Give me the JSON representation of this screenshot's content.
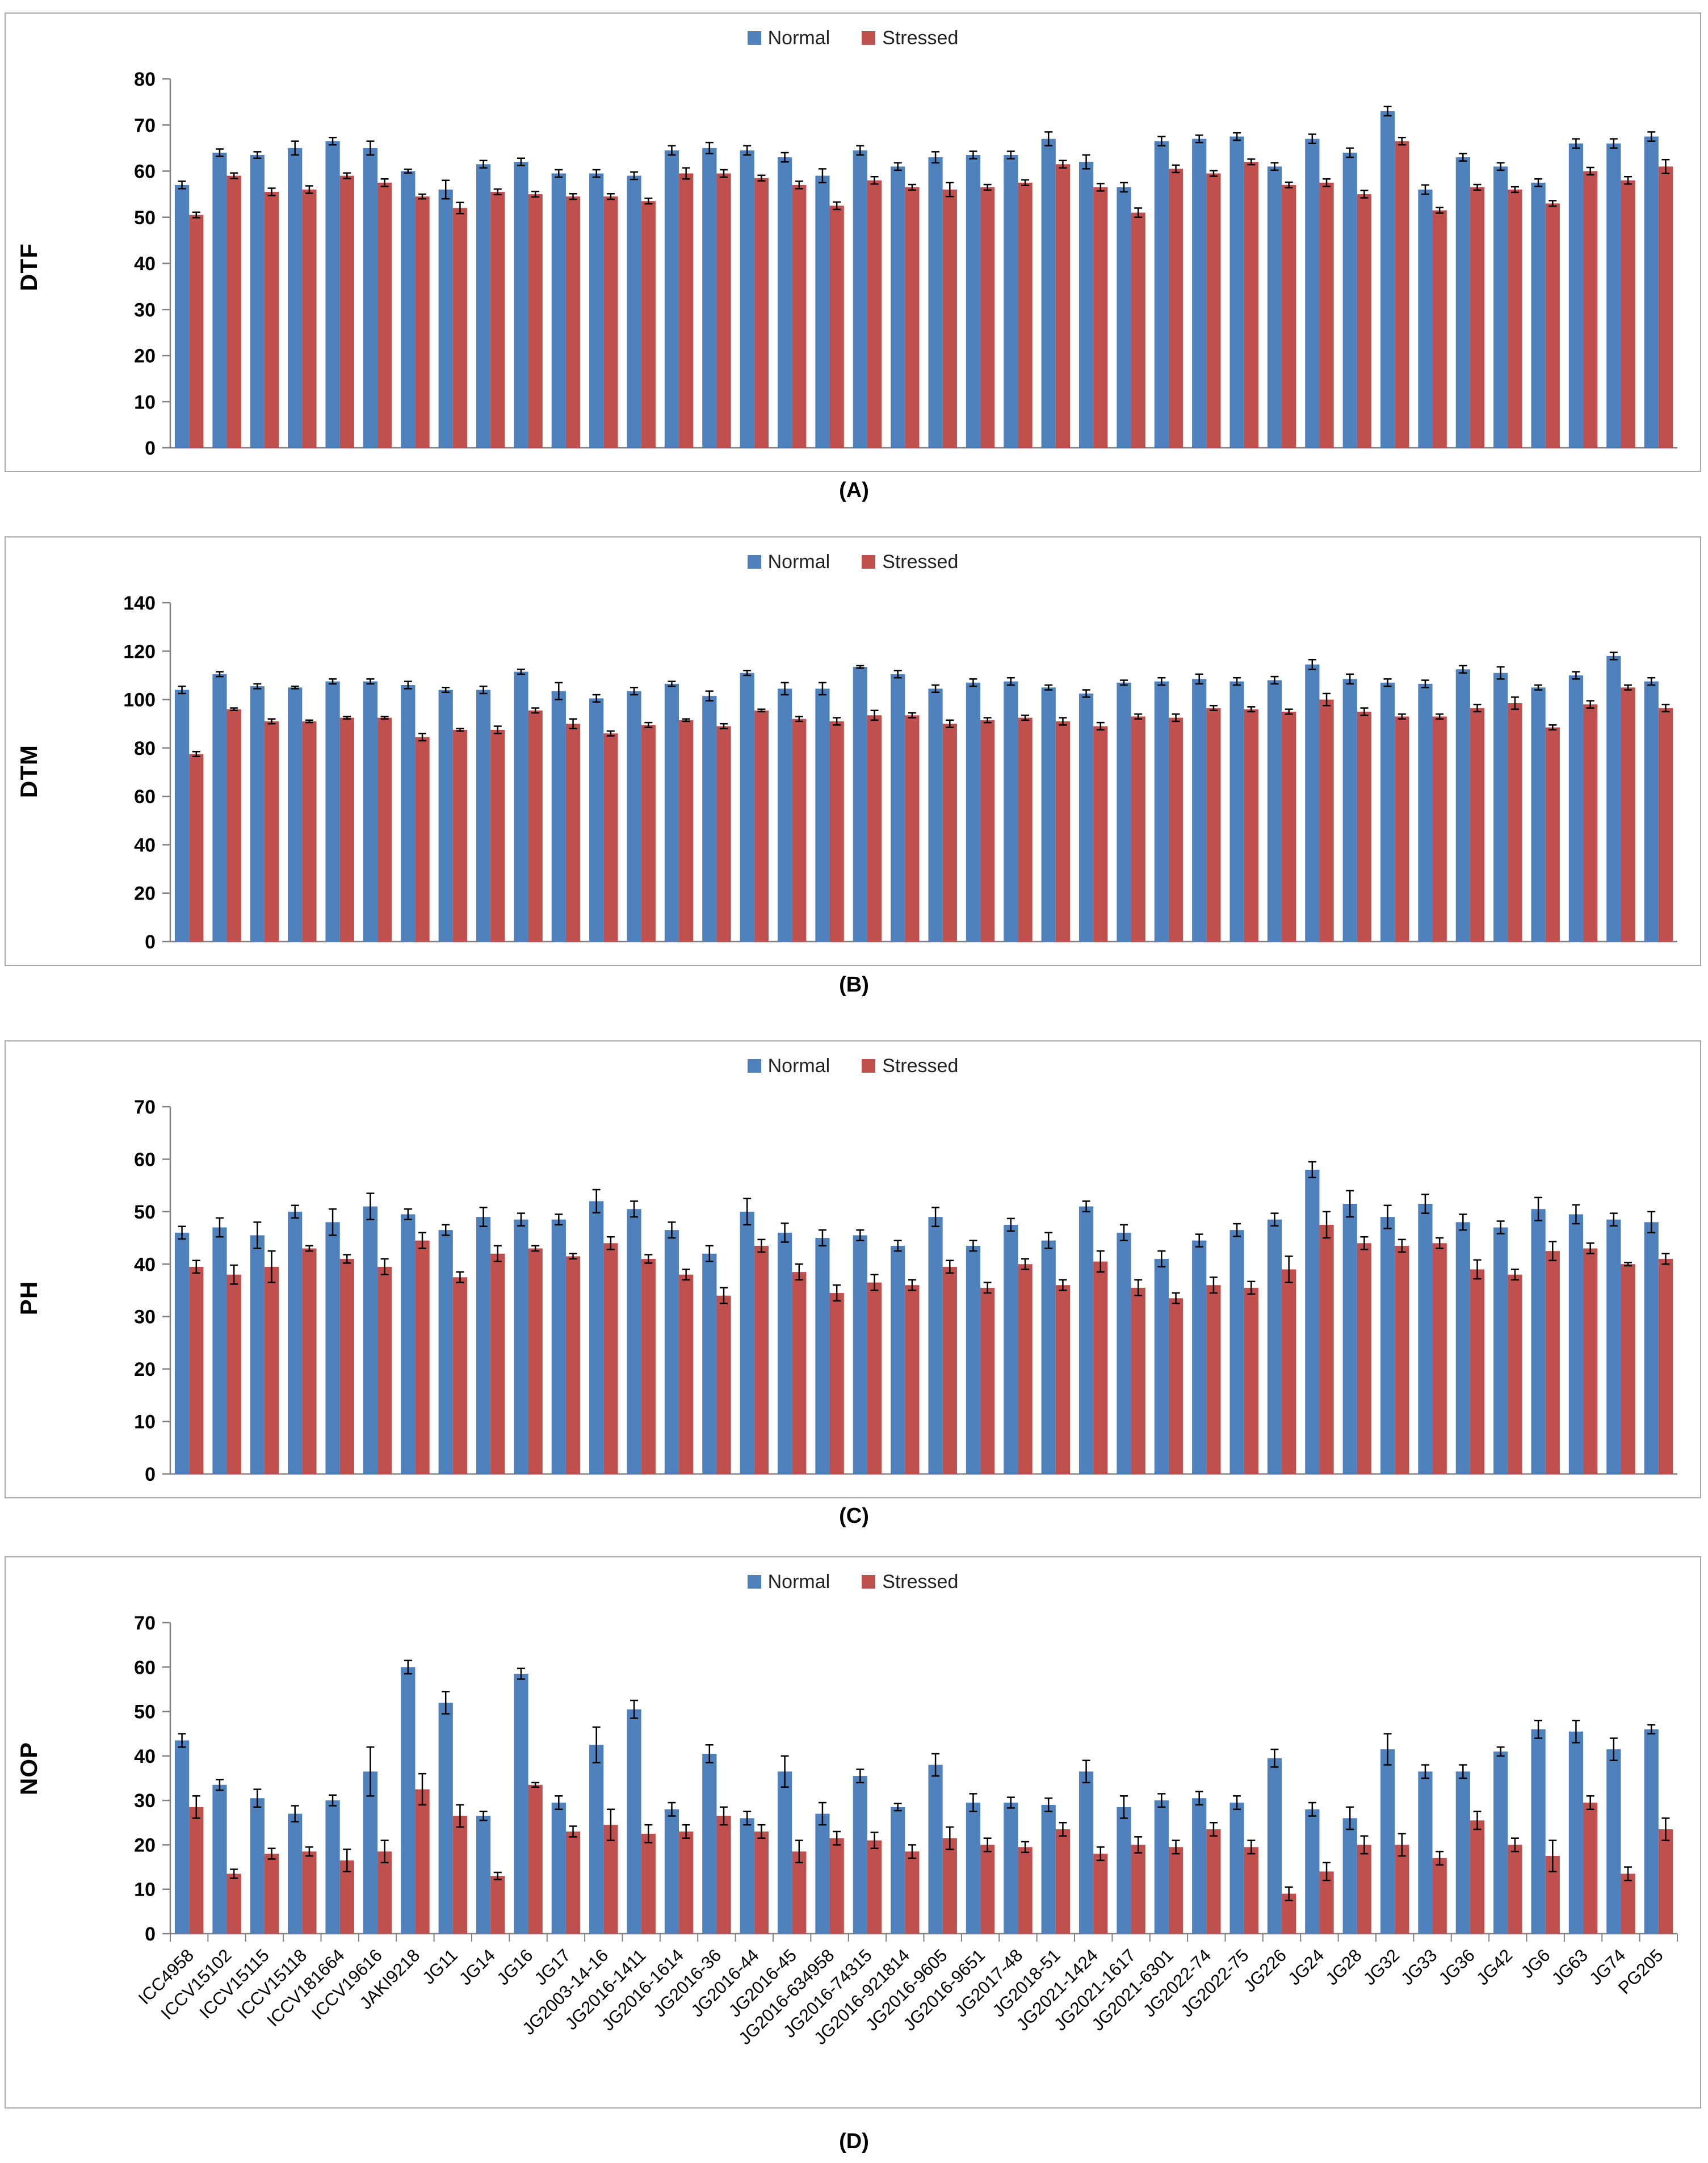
{
  "figure": {
    "legend": {
      "normal": "Normal",
      "stressed": "Stressed"
    },
    "colors": {
      "normal": "#4F81BD",
      "stressed": "#C0504D",
      "axis": "#808080",
      "frame": "#A6A6A6",
      "error": "#000000",
      "text": "#000000"
    }
  },
  "categories": [
    "ICC4958",
    "ICCV15102",
    "ICCV15115",
    "ICCV15118",
    "ICCV181664",
    "ICCV19616",
    "JAKI9218",
    "JG11",
    "JG14",
    "JG16",
    "JG17",
    "JG2003-14-16",
    "JG2016-1411",
    "JG2016-1614",
    "JG2016-36",
    "JG2016-44",
    "JG2016-45",
    "JG2016-634958",
    "JG2016-74315",
    "JG2016-921814",
    "JG2016-9605",
    "JG2016-9651",
    "JG2017-48",
    "JG2018-51",
    "JG2021-1424",
    "JG2021-1617",
    "JG2021-6301",
    "JG2022-74",
    "JG2022-75",
    "JG226",
    "JG24",
    "JG28",
    "JG32",
    "JG33",
    "JG36",
    "JG42",
    "JG6",
    "JG63",
    "JG74",
    "PG205"
  ],
  "chart_data": [
    {
      "type": "bar",
      "panel": "A",
      "caption": "(A)",
      "ylabel": "DTF",
      "ylim": [
        0,
        80
      ],
      "ystep": 10,
      "show_x_labels": false,
      "legend_position": "top-center",
      "series": [
        {
          "name": "Normal",
          "color": "#4F81BD",
          "values": [
            57,
            64,
            63.5,
            65,
            66.5,
            65,
            60,
            56,
            61.5,
            62,
            59.5,
            59.5,
            59,
            64.5,
            65,
            64.5,
            63,
            59,
            64.5,
            61,
            63,
            63.5,
            63.5,
            67,
            62,
            56.5,
            66.5,
            67,
            67.5,
            61,
            67,
            64,
            73,
            56,
            63,
            61,
            57.5,
            66,
            66,
            67.5
          ],
          "errors": [
            0.8,
            0.8,
            0.7,
            1.5,
            0.8,
            1.5,
            0.4,
            2,
            0.8,
            0.8,
            0.8,
            0.8,
            0.8,
            1,
            1.2,
            1,
            1,
            1.5,
            1,
            0.8,
            1.2,
            0.8,
            0.8,
            1.5,
            1.5,
            1,
            1,
            0.8,
            0.8,
            0.8,
            1,
            1,
            1,
            1,
            0.8,
            0.8,
            0.8,
            1,
            1,
            1
          ]
        },
        {
          "name": "Stressed",
          "color": "#C0504D",
          "values": [
            50.5,
            59,
            55.5,
            56,
            59,
            57.5,
            54.5,
            52,
            55.5,
            55,
            54.5,
            54.5,
            53.5,
            59.5,
            59.5,
            58.5,
            57,
            52.5,
            58,
            56.5,
            56,
            56.5,
            57.5,
            61.5,
            56.5,
            51,
            60.5,
            59.5,
            62,
            57,
            57.5,
            55,
            66.5,
            51.5,
            56.5,
            56,
            53,
            60,
            58,
            61
          ],
          "errors": [
            0.6,
            0.6,
            0.8,
            0.8,
            0.6,
            0.8,
            0.5,
            1.2,
            0.6,
            0.6,
            0.6,
            0.6,
            0.6,
            1.2,
            0.8,
            0.6,
            0.8,
            0.8,
            0.8,
            0.6,
            1.5,
            0.6,
            0.6,
            0.8,
            0.8,
            1,
            0.8,
            0.6,
            0.6,
            0.6,
            0.8,
            0.8,
            0.8,
            0.6,
            0.6,
            0.6,
            0.6,
            0.8,
            0.8,
            1.5
          ]
        }
      ]
    },
    {
      "type": "bar",
      "panel": "B",
      "caption": "(B)",
      "ylabel": "DTM",
      "ylim": [
        0,
        140
      ],
      "ystep": 20,
      "show_x_labels": false,
      "legend_position": "top-center",
      "series": [
        {
          "name": "Normal",
          "color": "#4F81BD",
          "values": [
            104,
            110.5,
            105.5,
            105,
            107.5,
            107.5,
            106,
            104,
            104,
            111.5,
            103.5,
            100.5,
            103.5,
            106.5,
            101.5,
            111,
            104.5,
            104.5,
            113.5,
            110.5,
            104.5,
            107,
            107.5,
            105,
            102.5,
            107,
            107.5,
            108.5,
            107.5,
            108,
            114.5,
            108.5,
            107,
            106.5,
            112.5,
            111,
            105,
            110,
            118,
            107.5
          ],
          "errors": [
            1.5,
            1,
            1,
            0.5,
            1,
            1,
            1.5,
            1,
            1.5,
            1,
            3.5,
            1.5,
            1.5,
            1,
            2,
            1,
            2.5,
            2.5,
            0.5,
            1.5,
            1.5,
            1.5,
            1.5,
            1,
            1.5,
            1,
            1.5,
            2,
            1.5,
            1.5,
            2,
            2,
            1.5,
            1.5,
            1.5,
            2.5,
            1,
            1.5,
            1.5,
            1.5
          ]
        },
        {
          "name": "Stressed",
          "color": "#C0504D",
          "values": [
            77.5,
            96,
            91,
            91,
            92.5,
            92.5,
            84.5,
            87.5,
            87.5,
            95.5,
            90,
            86,
            89.5,
            91.5,
            89,
            95.5,
            92,
            91,
            93.5,
            93.5,
            90,
            91.5,
            92.5,
            91,
            89,
            93,
            92.5,
            96.5,
            96,
            95,
            100,
            95,
            93,
            93,
            96.5,
            98.5,
            88.5,
            98,
            105,
            96.5
          ],
          "errors": [
            1,
            0.5,
            1,
            0.5,
            0.5,
            0.5,
            1.5,
            0.5,
            1.5,
            1,
            2,
            1,
            1,
            0.5,
            1,
            0.5,
            1,
            1.5,
            2,
            1,
            1.5,
            1,
            1,
            1.5,
            1.5,
            1,
            1.5,
            1,
            1,
            1,
            2.5,
            1.5,
            1,
            1,
            1.5,
            2.5,
            1,
            1.5,
            1,
            1.5
          ]
        }
      ]
    },
    {
      "type": "bar",
      "panel": "C",
      "caption": "(C)",
      "ylabel": "PH",
      "ylim": [
        0,
        70
      ],
      "ystep": 10,
      "show_x_labels": false,
      "legend_position": "top-center",
      "series": [
        {
          "name": "Normal",
          "color": "#4F81BD",
          "values": [
            46,
            47,
            45.5,
            50,
            48,
            51,
            49.5,
            46.5,
            49,
            48.5,
            48.5,
            52,
            50.5,
            46.5,
            42,
            50,
            46,
            45,
            45.5,
            43.5,
            49,
            43.5,
            47.5,
            44.5,
            51,
            46,
            41,
            44.5,
            46.5,
            48.5,
            58,
            51.5,
            49,
            51.5,
            48,
            47,
            50.5,
            49.5,
            48.5,
            48
          ],
          "errors": [
            1.2,
            1.8,
            2.5,
            1.2,
            2.5,
            2.5,
            1,
            1,
            1.8,
            1.2,
            1,
            2.2,
            1.5,
            1.5,
            1.5,
            2.5,
            1.8,
            1.5,
            1,
            1,
            1.8,
            1,
            1.2,
            1.5,
            1,
            1.5,
            1.5,
            1.2,
            1.2,
            1.2,
            1.5,
            2.5,
            2.2,
            1.8,
            1.5,
            1.2,
            2.2,
            1.8,
            1.2,
            2
          ]
        },
        {
          "name": "Stressed",
          "color": "#C0504D",
          "values": [
            39.5,
            38,
            39.5,
            43,
            41,
            39.5,
            44.5,
            37.5,
            42,
            43,
            41.5,
            44,
            41,
            38,
            34,
            43.5,
            38.5,
            34.5,
            36.5,
            36,
            39.5,
            35.5,
            40,
            36,
            40.5,
            35.5,
            33.5,
            36,
            35.5,
            39,
            47.5,
            44,
            43.5,
            44,
            39,
            38,
            42.5,
            43,
            40,
            41
          ],
          "errors": [
            1.2,
            1.8,
            3,
            0.5,
            0.8,
            1.5,
            1.5,
            1,
            1.5,
            0.5,
            0.5,
            1.2,
            0.8,
            1,
            1.5,
            1.2,
            1.5,
            1.5,
            1.5,
            1,
            1.2,
            1,
            1,
            1,
            2,
            1.5,
            1,
            1.5,
            1.2,
            2.5,
            2.5,
            1.2,
            1.2,
            1,
            1.8,
            1,
            1.8,
            1,
            0.3,
            1
          ]
        }
      ]
    },
    {
      "type": "bar",
      "panel": "D",
      "caption": "(D)",
      "ylabel": "NOP",
      "ylim": [
        0,
        70
      ],
      "ystep": 10,
      "show_x_labels": true,
      "legend_position": "top-center",
      "series": [
        {
          "name": "Normal",
          "color": "#4F81BD",
          "values": [
            43.5,
            33.5,
            30.5,
            27,
            30,
            36.5,
            60,
            52,
            26.5,
            58.5,
            29.5,
            42.5,
            50.5,
            28,
            40.5,
            26,
            36.5,
            27,
            35.5,
            28.5,
            38,
            29.5,
            29.5,
            29,
            36.5,
            28.5,
            30,
            30.5,
            29.5,
            39.5,
            28,
            26,
            41.5,
            36.5,
            36.5,
            41,
            46,
            45.5,
            41.5,
            46
          ],
          "errors": [
            1.5,
            1.2,
            2,
            1.8,
            1.2,
            5.5,
            1.5,
            2.5,
            1,
            1.2,
            1.5,
            4,
            2,
            1.5,
            2,
            1.5,
            3.5,
            2.5,
            1.5,
            0.8,
            2.5,
            2,
            1.2,
            1.5,
            2.5,
            2.5,
            1.5,
            1.5,
            1.5,
            2,
            1.5,
            2.5,
            3.5,
            1.5,
            1.5,
            1,
            2,
            2.5,
            2.5,
            1
          ]
        },
        {
          "name": "Stressed",
          "color": "#C0504D",
          "values": [
            28.5,
            13.5,
            18,
            18.5,
            16.5,
            18.5,
            32.5,
            26.5,
            13,
            33.5,
            23,
            24.5,
            22.5,
            23,
            26.5,
            23,
            18.5,
            21.5,
            21,
            18.5,
            21.5,
            20,
            19.5,
            23.5,
            18,
            20,
            19.5,
            23.5,
            19.5,
            9,
            14,
            20,
            20,
            17,
            25.5,
            20,
            17.5,
            29.5,
            13.5,
            23.5
          ],
          "errors": [
            2.5,
            1,
            1.2,
            1,
            2.5,
            2.5,
            3.5,
            2.5,
            0.8,
            0.5,
            1.2,
            3.5,
            2,
            1.5,
            2,
            1.5,
            2.5,
            1.5,
            1.8,
            1.5,
            2.5,
            1.5,
            1.2,
            1.5,
            1.5,
            1.8,
            1.5,
            1.5,
            1.5,
            1.5,
            2,
            2,
            2.5,
            1.5,
            2,
            1.5,
            3.5,
            1.5,
            1.5,
            2.5
          ]
        }
      ]
    }
  ]
}
